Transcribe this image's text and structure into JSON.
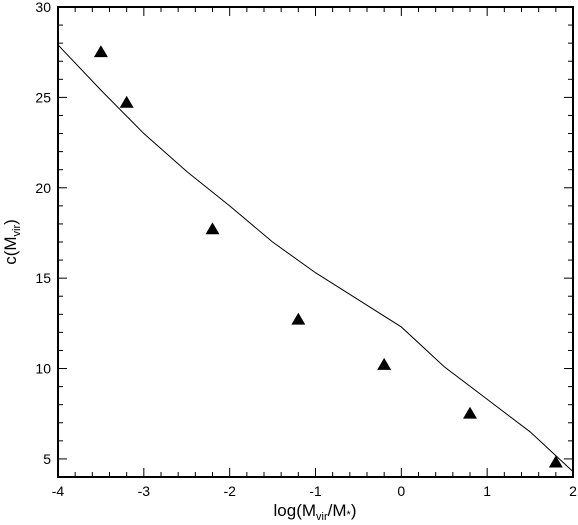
{
  "chart_data": {
    "type": "scatter",
    "xlabel": {
      "main": "log(M",
      "sub1": "vir",
      "mid": "/M",
      "sub2": "*",
      "end": ")"
    },
    "ylabel": {
      "main": "c(M",
      "sub": "vir",
      "end": ")"
    },
    "xlim": [
      -4,
      2
    ],
    "ylim": [
      4,
      30
    ],
    "x_ticks": [
      -4,
      -3,
      -2,
      -1,
      0,
      1,
      2
    ],
    "x_tick_labels": [
      "-4",
      "-3",
      "-2",
      "-1",
      "0",
      "1",
      "2"
    ],
    "y_ticks": [
      5,
      10,
      15,
      20,
      25,
      30
    ],
    "y_tick_labels": [
      "5",
      "10",
      "15",
      "20",
      "25",
      "30"
    ],
    "grid": false,
    "colors": {
      "axis": "#000000",
      "marker": "#000000",
      "curve": "#000000"
    },
    "series": [
      {
        "marker": "triangle",
        "x": [
          -3.5,
          -3.2,
          -2.2,
          -1.2,
          -0.2,
          0.8,
          1.8
        ],
        "y": [
          27.5,
          24.7,
          17.7,
          12.7,
          10.2,
          7.5,
          4.8
        ]
      },
      {
        "type": "line",
        "x": [
          -4.0,
          -3.5,
          -3.0,
          -2.5,
          -2.0,
          -1.5,
          -1.0,
          -0.5,
          0.0,
          0.5,
          1.0,
          1.5,
          2.0
        ],
        "y": [
          27.9,
          25.4,
          23.0,
          20.9,
          19.0,
          17.0,
          15.3,
          13.8,
          12.3,
          10.1,
          8.3,
          6.5,
          4.3
        ]
      }
    ]
  }
}
